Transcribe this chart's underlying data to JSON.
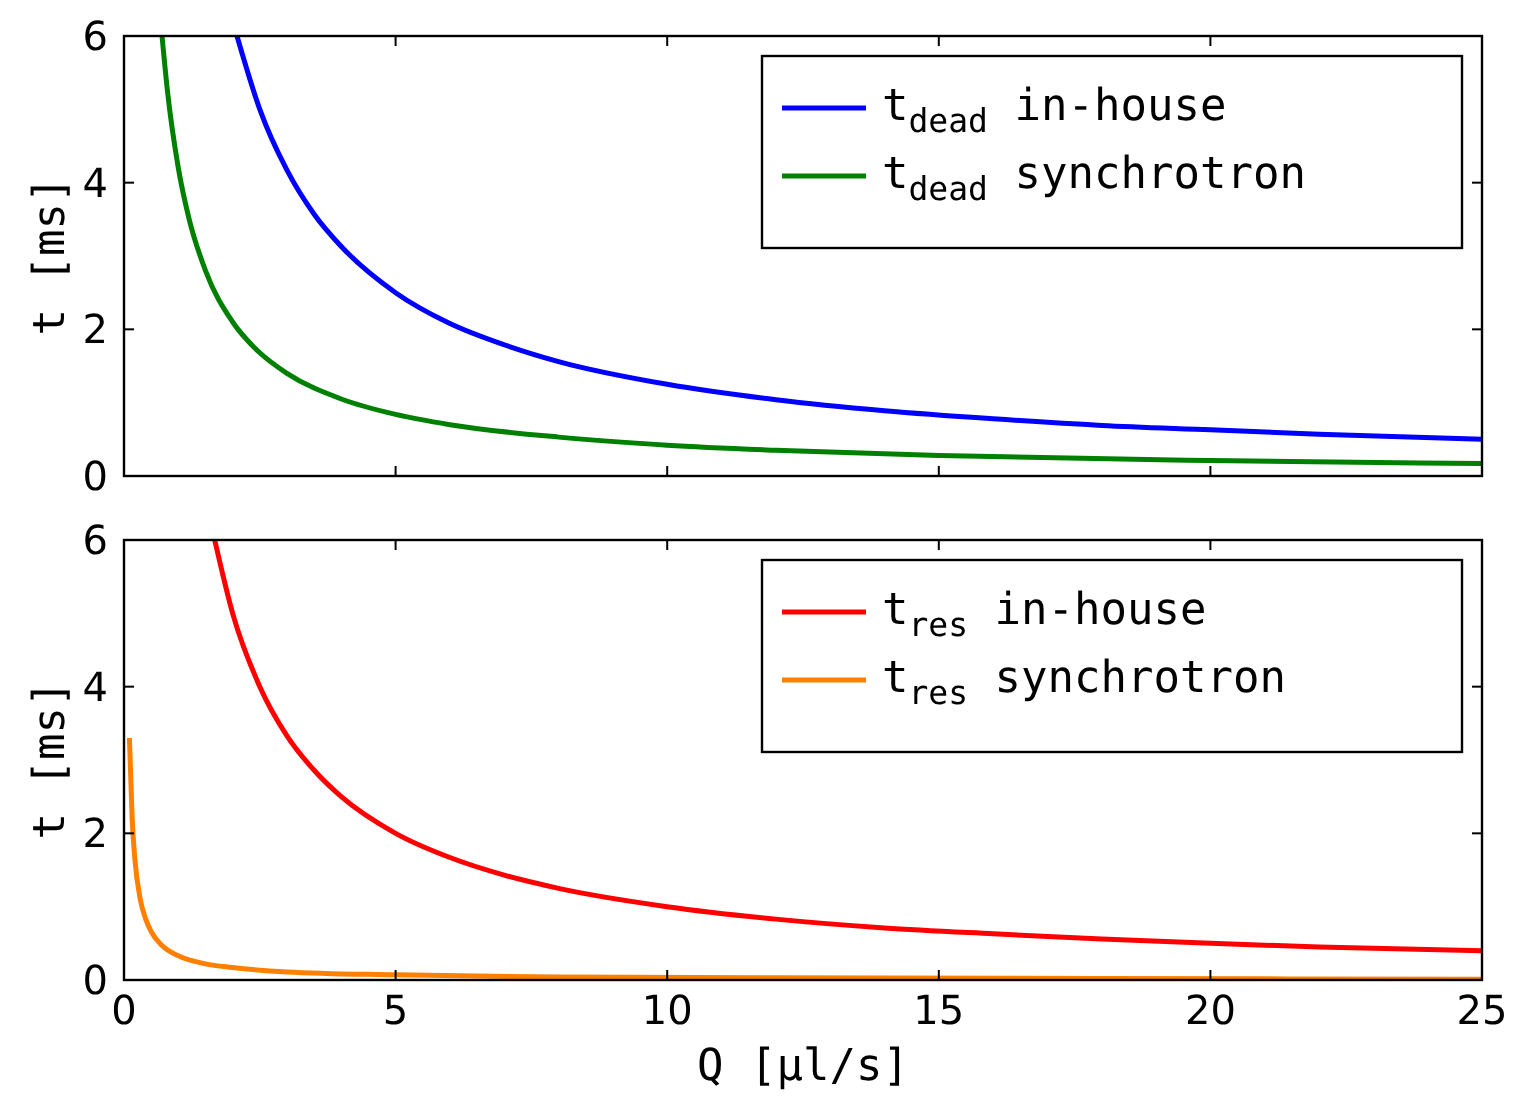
{
  "chart_data": [
    {
      "type": "line",
      "ylabel": "t [ms]",
      "xlim": [
        0,
        25
      ],
      "xticks": [
        0,
        5,
        10,
        15,
        20,
        25
      ],
      "ylim": [
        0,
        6
      ],
      "yticks": [
        0,
        2,
        4,
        6
      ],
      "tick_labels": "y",
      "legend": "top right",
      "grid": false,
      "series": [
        {
          "name": "t$_{dead}$ in-house",
          "color": "#0000ff",
          "x": [
            2.08,
            2.5,
            3,
            3.5,
            4,
            5,
            6,
            7,
            8,
            10,
            12,
            14,
            16,
            18,
            20,
            22,
            25
          ],
          "values": [
            6.0,
            5.0,
            4.17,
            3.57,
            3.13,
            2.5,
            2.08,
            1.79,
            1.56,
            1.25,
            1.04,
            0.89,
            0.78,
            0.69,
            0.63,
            0.57,
            0.5
          ]
        },
        {
          "name": "t$_{dead}$ synchrotron",
          "color": "#008000",
          "x": [
            0.7,
            0.8,
            1,
            1.2,
            1.5,
            2,
            2.5,
            3,
            4,
            5,
            6,
            8,
            10,
            12,
            15,
            20,
            25
          ],
          "values": [
            6.0,
            5.25,
            4.2,
            3.5,
            2.8,
            2.1,
            1.68,
            1.4,
            1.05,
            0.84,
            0.7,
            0.53,
            0.42,
            0.35,
            0.28,
            0.21,
            0.17
          ]
        }
      ]
    },
    {
      "type": "line",
      "ylabel": "t [ms]",
      "xlabel": "Q [μl/s]",
      "xlim": [
        0,
        25
      ],
      "xticks": [
        0,
        5,
        10,
        15,
        20,
        25
      ],
      "ylim": [
        0,
        6
      ],
      "yticks": [
        0,
        2,
        4,
        6
      ],
      "legend": "top right",
      "grid": false,
      "series": [
        {
          "name": "t$_{res}$ in-house",
          "color": "#ff0000",
          "x": [
            1.67,
            2,
            2.5,
            3,
            3.5,
            4,
            5,
            6,
            7,
            8,
            10,
            12,
            14,
            16,
            18,
            20,
            22,
            25
          ],
          "values": [
            6.0,
            5.0,
            4.0,
            3.33,
            2.86,
            2.5,
            2.0,
            1.67,
            1.43,
            1.25,
            1.0,
            0.83,
            0.71,
            0.63,
            0.56,
            0.5,
            0.45,
            0.4
          ]
        },
        {
          "name": "t$_{res}$ synchrotron",
          "color": "#ff8000",
          "x": [
            0.1,
            0.15,
            0.2,
            0.3,
            0.4,
            0.5,
            0.7,
            1,
            1.5,
            2,
            3,
            5,
            8,
            12,
            18,
            25
          ],
          "values": [
            3.3,
            2.2,
            1.65,
            1.1,
            0.83,
            0.66,
            0.47,
            0.33,
            0.22,
            0.17,
            0.11,
            0.07,
            0.04,
            0.03,
            0.02,
            0.01
          ]
        }
      ]
    }
  ]
}
